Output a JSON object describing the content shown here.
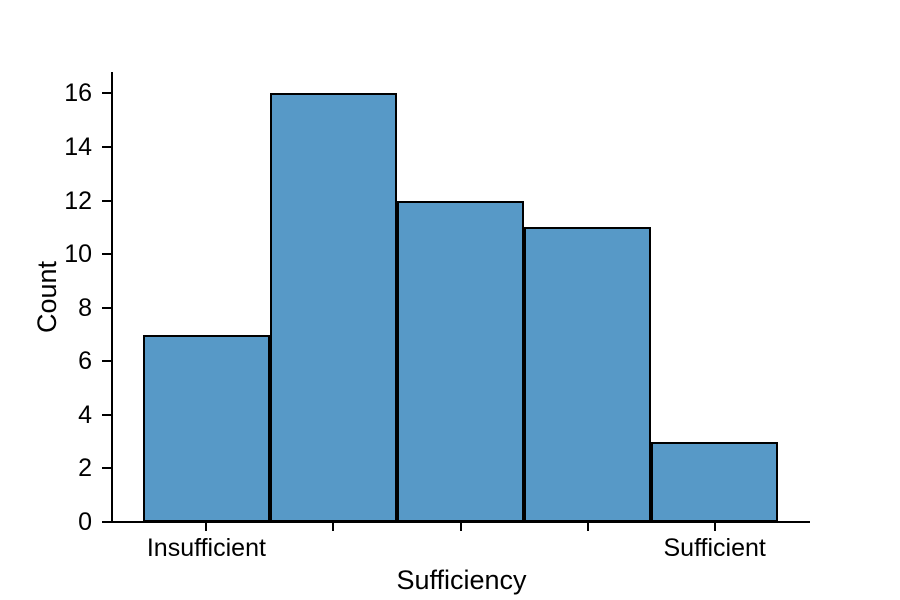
{
  "chart_data": {
    "type": "bar",
    "variant": "histogram",
    "xlabel": "Sufficiency",
    "ylabel": "Count",
    "values": [
      7,
      16,
      12,
      11,
      3
    ],
    "bin_edges": [
      0.0,
      0.2,
      0.4,
      0.6,
      0.8,
      1.0
    ],
    "xticks": {
      "positions": [
        0.1,
        0.3,
        0.5,
        0.7,
        0.9
      ],
      "labels": [
        "Insufficient",
        "",
        "",
        "",
        "Sufficient"
      ]
    },
    "yticks": [
      0,
      2,
      4,
      6,
      8,
      10,
      12,
      14,
      16
    ],
    "xlim": [
      -0.047,
      1.05
    ],
    "ylim": [
      0,
      16.8
    ],
    "grid": false,
    "legend": false,
    "bar_fill_color": "#5799c7",
    "bar_edge_color": "#000000",
    "axis_color": "#000000",
    "text_color": "#000000",
    "background_color": "#ffffff"
  }
}
